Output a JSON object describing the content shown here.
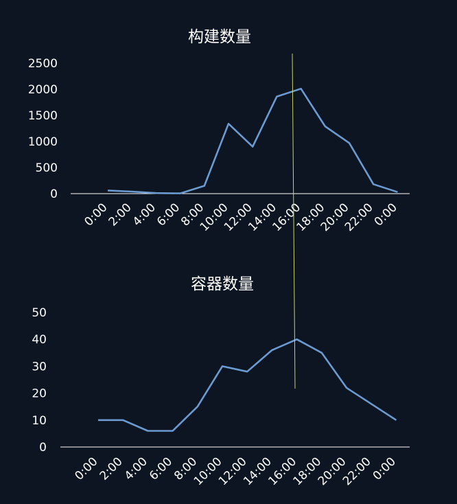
{
  "colors": {
    "background": "#0c1521",
    "line": "#6b9bd1",
    "cursor": "#c9d66a",
    "text": "#ffffff"
  },
  "chart_data": [
    {
      "type": "line",
      "title": "构建数量",
      "categories": [
        "0:00",
        "2:00",
        "4:00",
        "6:00",
        "8:00",
        "10:00",
        "12:00",
        "14:00",
        "16:00",
        "18:00",
        "20:00",
        "22:00",
        "0:00"
      ],
      "values": [
        60,
        40,
        10,
        5,
        150,
        1340,
        900,
        1860,
        2010,
        1290,
        970,
        180,
        30
      ],
      "yticks": [
        0,
        500,
        1000,
        1500,
        2000,
        2500
      ],
      "ylim": [
        0,
        2500
      ],
      "xlabel": "",
      "ylabel": "",
      "grid": false
    },
    {
      "type": "line",
      "title": "容器数量",
      "categories": [
        "0:00",
        "2:00",
        "4:00",
        "6:00",
        "8:00",
        "10:00",
        "12:00",
        "14:00",
        "16:00",
        "18:00",
        "20:00",
        "22:00",
        "0:00"
      ],
      "values": [
        10,
        10,
        6,
        6,
        15,
        30,
        28,
        36,
        40,
        35,
        22,
        16,
        10
      ],
      "yticks": [
        0,
        10,
        20,
        30,
        40,
        50
      ],
      "ylim": [
        0,
        50
      ],
      "xlabel": "",
      "ylabel": "",
      "grid": false
    }
  ]
}
